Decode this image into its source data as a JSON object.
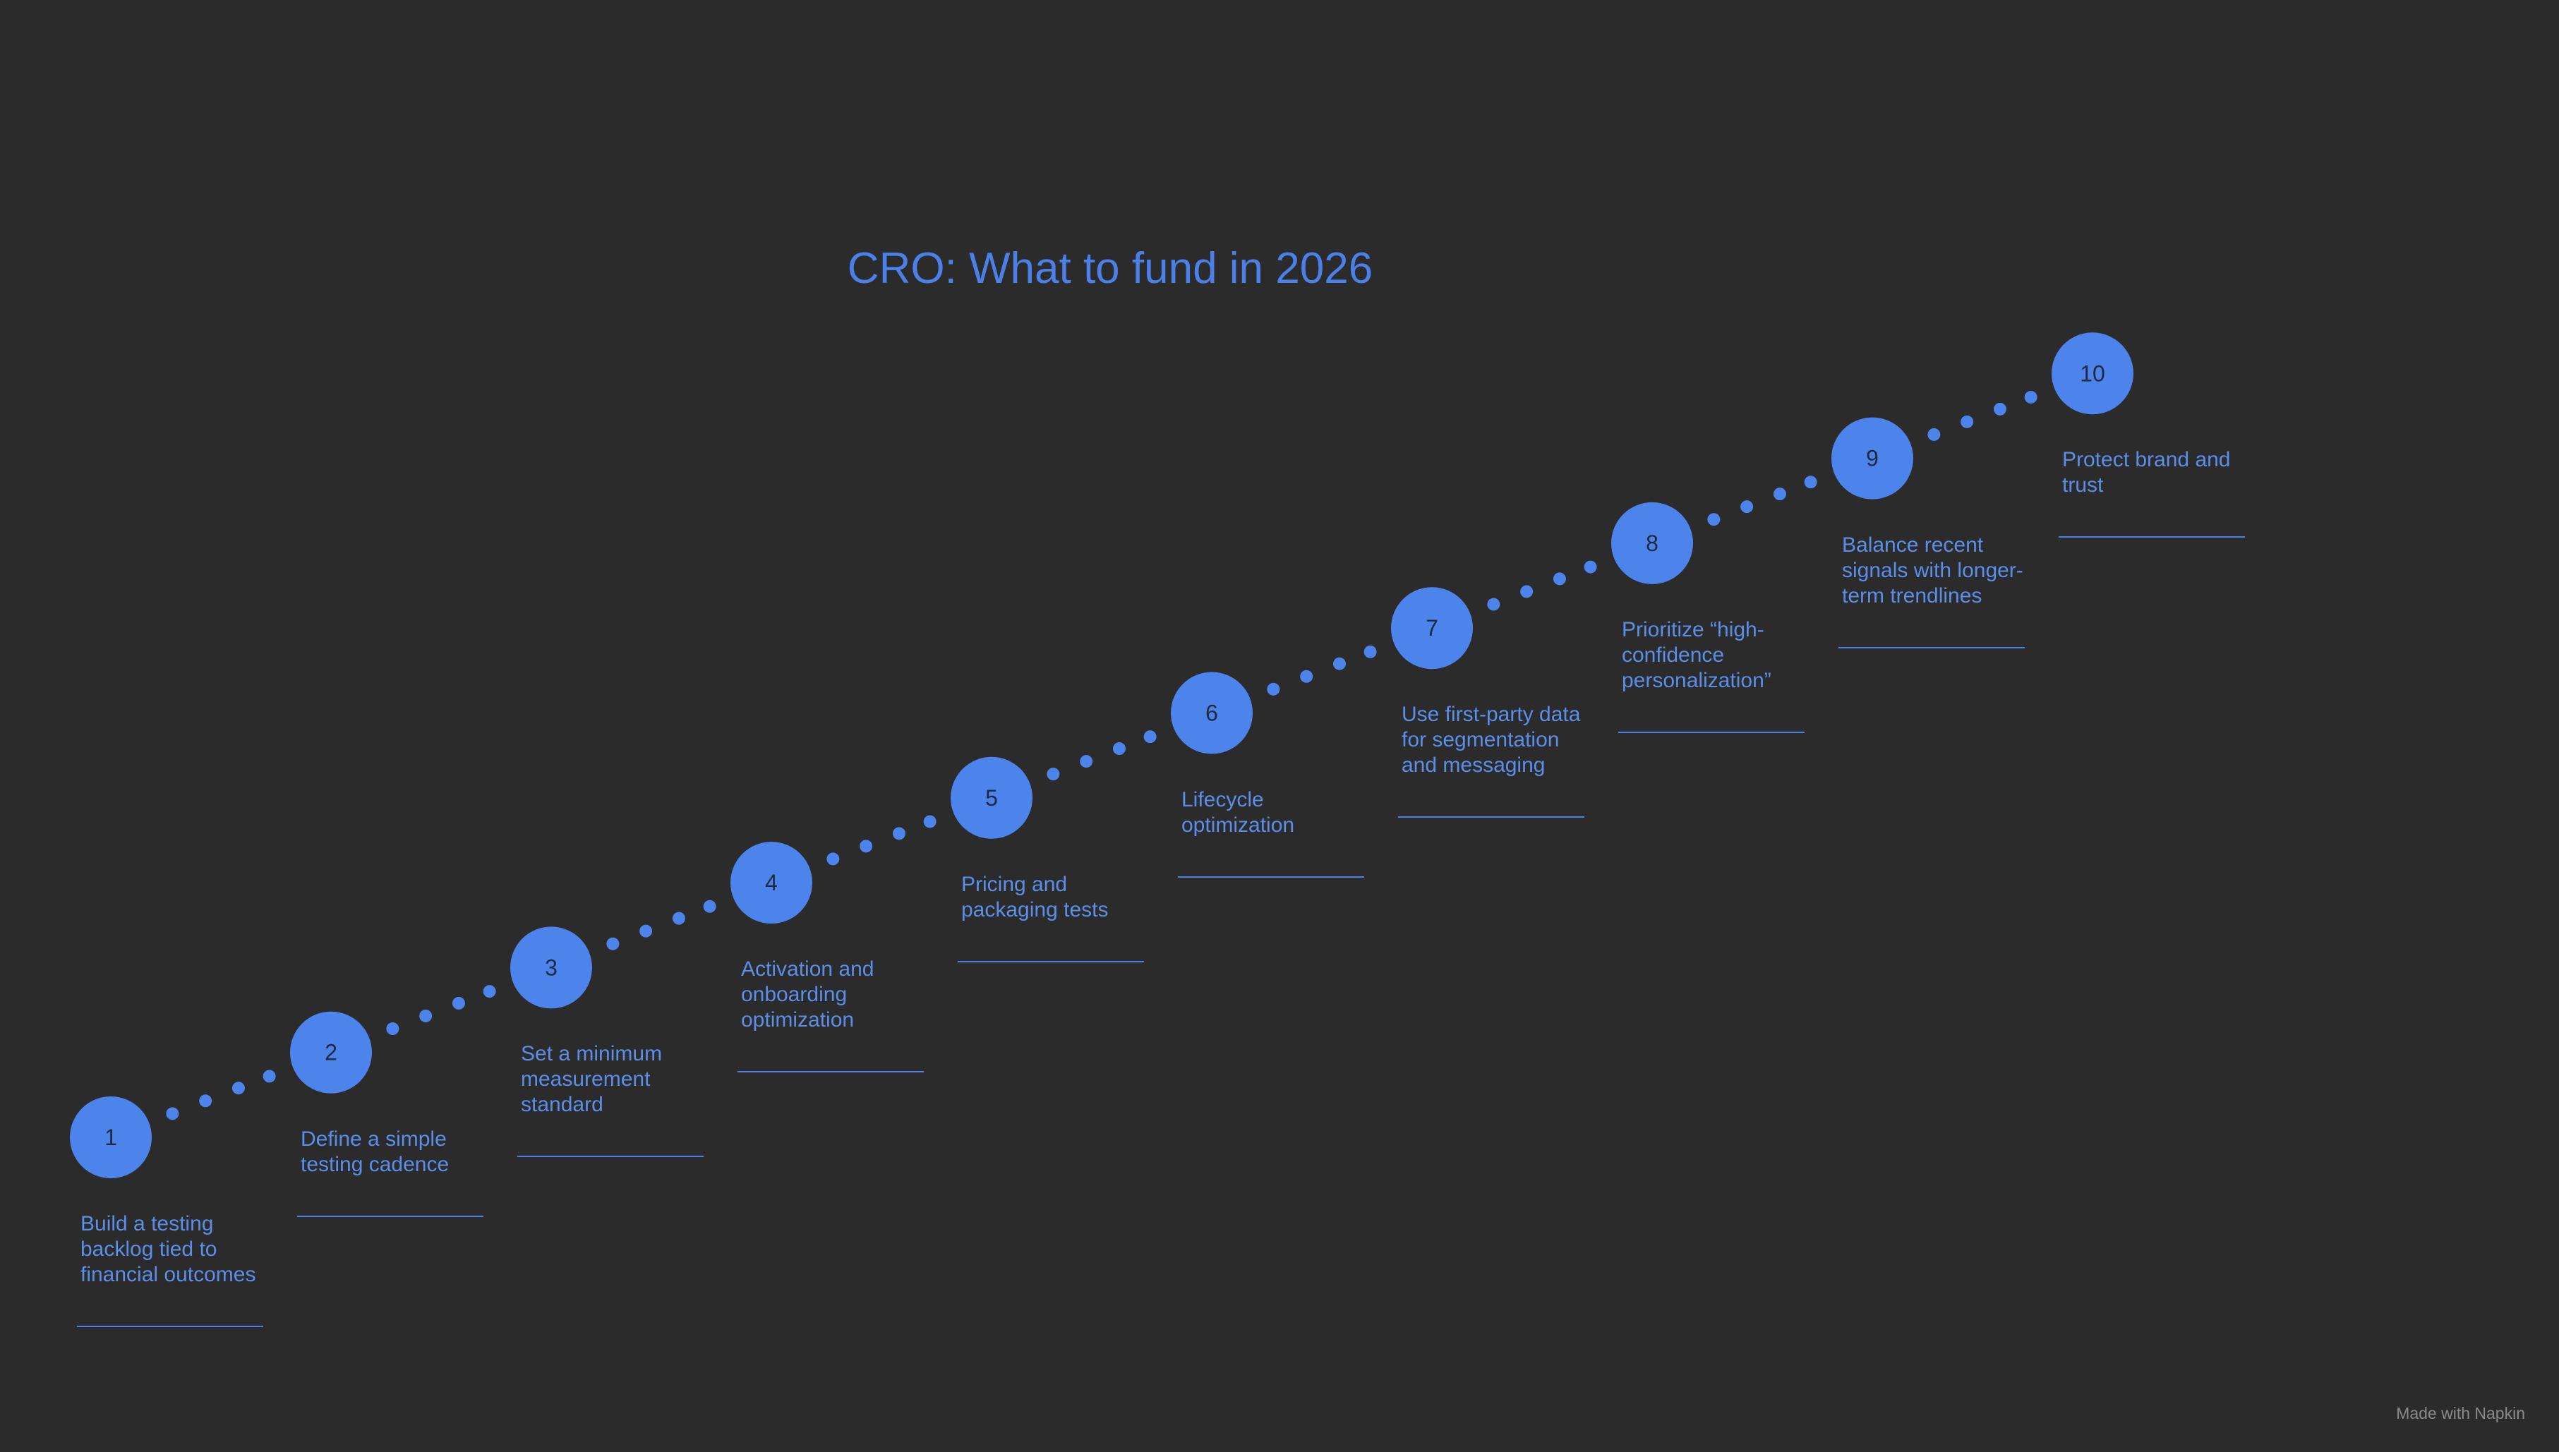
{
  "title": "CRO: What to fund in 2026",
  "steps": [
    {
      "number": "1",
      "label": "Build a testing backlog tied to financial outcomes"
    },
    {
      "number": "2",
      "label": "Define a simple testing cadence"
    },
    {
      "number": "3",
      "label": "Set a minimum measurement standard"
    },
    {
      "number": "4",
      "label": "Activation and onboarding optimization"
    },
    {
      "number": "5",
      "label": "Pricing and packaging tests"
    },
    {
      "number": "6",
      "label": "Lifecycle optimization"
    },
    {
      "number": "7",
      "label": "Use first-party data for segmentation and messaging"
    },
    {
      "number": "8",
      "label": "Prioritize “high-confidence personalization”"
    },
    {
      "number": "9",
      "label": "Balance recent signals with longer-term trendlines"
    },
    {
      "number": "10",
      "label": "Protect brand and trust"
    }
  ],
  "footer": "Made with Napkin"
}
